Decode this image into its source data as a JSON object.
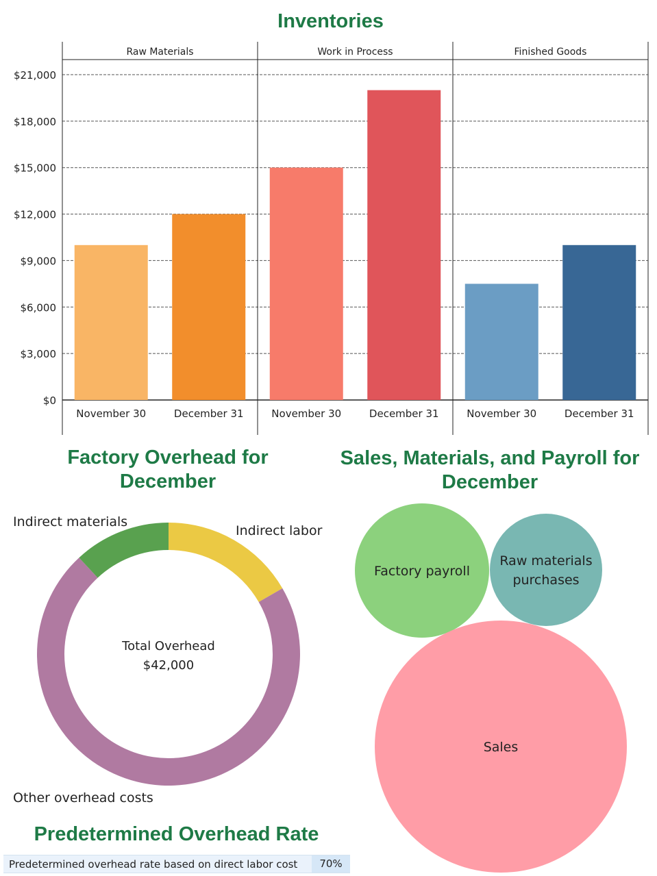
{
  "inventories": {
    "title": "Inventories",
    "chart_data": {
      "type": "bar",
      "title": "Inventories",
      "panels": [
        "Raw Materials",
        "Work in Process",
        "Finished Goods"
      ],
      "categories": [
        "November 30",
        "December 31"
      ],
      "series": [
        {
          "name": "Raw Materials",
          "values": [
            10000,
            12000
          ],
          "colors": [
            "#f9b565",
            "#f28e2c"
          ]
        },
        {
          "name": "Work in Process",
          "values": [
            15000,
            20000
          ],
          "colors": [
            "#f77b6a",
            "#e0555a"
          ]
        },
        {
          "name": "Finished Goods",
          "values": [
            7500,
            10000
          ],
          "colors": [
            "#6b9dc4",
            "#386795"
          ]
        }
      ],
      "yticks": [
        0,
        3000,
        6000,
        9000,
        12000,
        15000,
        18000,
        21000
      ],
      "ytick_labels": [
        "$0",
        "$3,000",
        "$6,000",
        "$9,000",
        "$12,000",
        "$15,000",
        "$18,000",
        "$21,000"
      ],
      "ylim": [
        0,
        21000
      ],
      "grid": true
    }
  },
  "overhead": {
    "title_line1": "Factory Overhead for",
    "title_line2": "December",
    "center_label": "Total Overhead",
    "center_value": "$42,000",
    "chart_data": {
      "type": "pie",
      "title": "Factory Overhead for December",
      "total": 42000,
      "slices": [
        {
          "label": "Indirect labor",
          "value": 7000,
          "color": "#ebc944"
        },
        {
          "label": "Other overhead costs",
          "value": 30000,
          "color": "#b07aa1"
        },
        {
          "label": "Indirect materials",
          "value": 5000,
          "color": "#59a14f"
        }
      ]
    }
  },
  "bubbles": {
    "title_line1": "Sales, Materials, and Payroll for",
    "title_line2": "December",
    "chart_data": {
      "type": "bubble",
      "title": "Sales, Materials, and Payroll for December",
      "items": [
        {
          "label": "Factory payroll",
          "lines": [
            "Factory payroll"
          ],
          "relative_size": 0.28,
          "color": "#8cd17d"
        },
        {
          "label": "Raw materials purchases",
          "lines": [
            "Raw materials",
            "purchases"
          ],
          "relative_size": 0.19,
          "color": "#79b7b2"
        },
        {
          "label": "Sales",
          "lines": [
            "Sales"
          ],
          "relative_size": 1.0,
          "color": "#ff9da7"
        }
      ]
    }
  },
  "rate": {
    "title": "Predetermined Overhead Rate",
    "label": "Predetermined overhead rate based on direct labor cost",
    "value": "70%"
  }
}
